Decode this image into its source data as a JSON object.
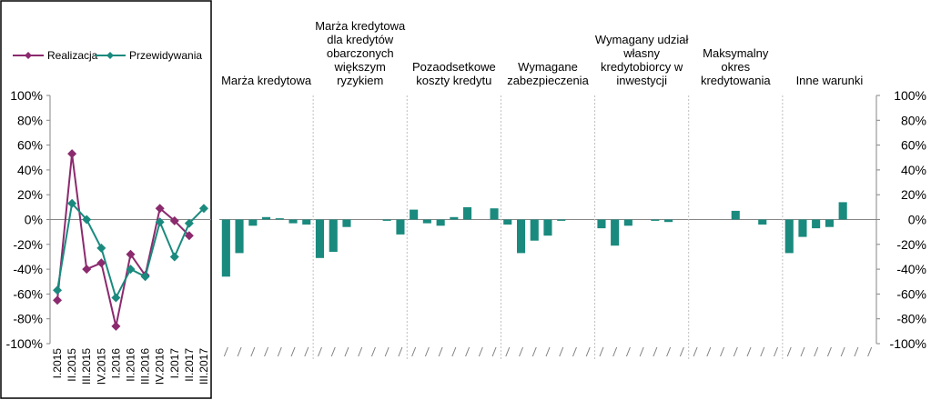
{
  "chart_data": [
    {
      "type": "line",
      "categories": [
        "I.2015",
        "II.2015",
        "III.2015",
        "IV.2015",
        "I.2016",
        "II.2016",
        "III.2016",
        "IV.2016",
        "I.2017",
        "II.2017",
        "III.2017"
      ],
      "ylim": [
        -100,
        100
      ],
      "yticks": [
        "100%",
        "80%",
        "60%",
        "40%",
        "20%",
        "0%",
        "-20%",
        "-40%",
        "-60%",
        "-80%",
        "-100%"
      ],
      "legend_position": "top",
      "series": [
        {
          "name": "Realizacja",
          "color": "#8b2a6e",
          "marker": "diamond",
          "values": [
            -65,
            53,
            -40,
            -35,
            -86,
            -28,
            -45,
            9,
            -1,
            -13,
            null
          ]
        },
        {
          "name": "Przewidywania",
          "color": "#1a8a7e",
          "marker": "diamond",
          "values": [
            -57,
            13,
            0,
            -23,
            -63,
            -40,
            -46,
            -2,
            -30,
            -3,
            9
          ]
        }
      ]
    },
    {
      "type": "bar",
      "color": "#1a8a7e",
      "ylim": [
        -100,
        100
      ],
      "yticks": [
        "100%",
        "80%",
        "60%",
        "40%",
        "20%",
        "0%",
        "-20%",
        "-40%",
        "-60%",
        "-80%",
        "-100%"
      ],
      "groups": [
        {
          "title": [
            "Marża kredytowa"
          ],
          "values": [
            -46,
            -27,
            -5,
            2,
            1,
            -3,
            -4
          ]
        },
        {
          "title": [
            "Marża kredytowa",
            "dla kredytów",
            "obarczonych",
            "większym",
            "ryzykiem"
          ],
          "values": [
            -31,
            -26,
            -6,
            0,
            0,
            -1,
            -12
          ]
        },
        {
          "title": [
            "Pozaodsetkowe",
            "koszty kredytu"
          ],
          "values": [
            8,
            -3,
            -5,
            2,
            10,
            0,
            9
          ]
        },
        {
          "title": [
            "Wymagane",
            "zabezpieczenia"
          ],
          "values": [
            -4,
            -27,
            -17,
            -13,
            -1,
            0,
            0
          ]
        },
        {
          "title": [
            "Wymagany udział",
            "własny",
            "kredytobiorcy w",
            "inwestycji"
          ],
          "values": [
            -7,
            -21,
            -5,
            0,
            -1,
            -2,
            0
          ]
        },
        {
          "title": [
            "Maksymalny",
            "okres",
            "kredytowania"
          ],
          "values": [
            0,
            0,
            0,
            7,
            0,
            -4,
            0
          ]
        },
        {
          "title": [
            "Inne warunki"
          ],
          "values": [
            -27,
            -14,
            -7,
            -6,
            14,
            0,
            0
          ]
        }
      ]
    }
  ]
}
